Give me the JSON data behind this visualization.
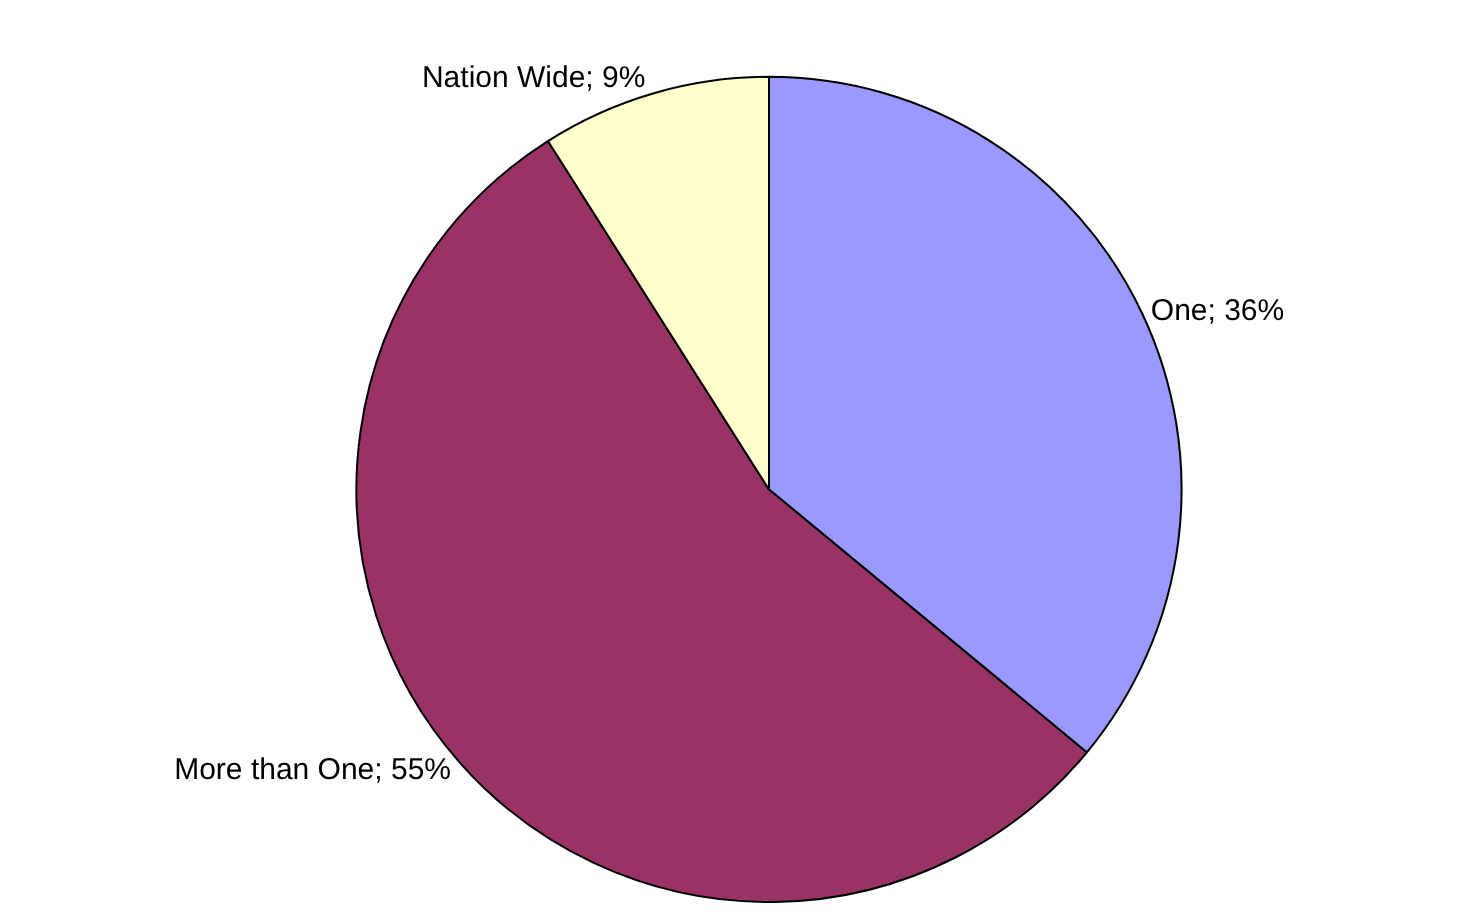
{
  "chart_data": {
    "type": "pie",
    "categories": [
      "One",
      "More than One",
      "Nation Wide"
    ],
    "values": [
      36,
      55,
      9
    ],
    "colors": [
      "#9999ff",
      "#993366",
      "#ffffcc"
    ],
    "value_labels": [
      "36%",
      "55%",
      "9%"
    ],
    "legend": false
  }
}
